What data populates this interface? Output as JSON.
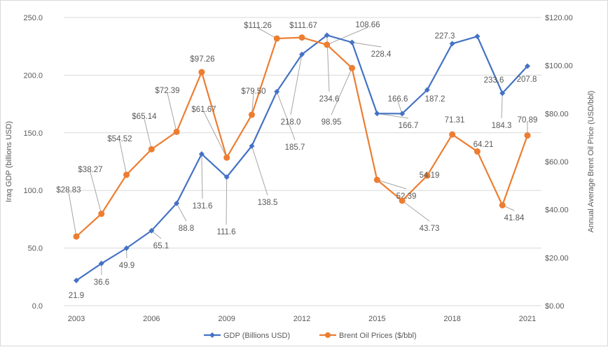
{
  "chart_data": {
    "type": "line",
    "x": [
      2003,
      2004,
      2005,
      2006,
      2007,
      2008,
      2009,
      2010,
      2011,
      2012,
      2013,
      2014,
      2015,
      2016,
      2017,
      2018,
      2019,
      2020,
      2021
    ],
    "x_ticks": [
      "2003",
      "2006",
      "2009",
      "2012",
      "2015",
      "2018",
      "2021"
    ],
    "ylabel": "Iraq GDP (billions USD)",
    "y2label": "Annual Average Brent Oil Price (USD/bbl)",
    "ylim": [
      0,
      250
    ],
    "y2lim": [
      0,
      120
    ],
    "y_ticks": [
      "0.0",
      "50.0",
      "100.0",
      "150.0",
      "200.0",
      "250.0"
    ],
    "y2_ticks": [
      "$0.00",
      "$20.00",
      "$40.00",
      "$60.00",
      "$80.00",
      "$100.00",
      "$120.00"
    ],
    "grid": true,
    "legend": "bottom",
    "series": [
      {
        "name": "GDP (Billions USD)",
        "axis": "left",
        "color": "#4472C4",
        "marker": "diamond",
        "values": [
          21.9,
          36.6,
          49.9,
          65.1,
          88.8,
          131.6,
          111.6,
          138.5,
          185.7,
          218.0,
          234.6,
          228.4,
          166.7,
          166.6,
          187.2,
          227.3,
          233.6,
          184.3,
          207.8
        ],
        "labels": [
          "21.9",
          "36.6",
          "49.9",
          "65.1",
          "88.8",
          "131.6",
          "111.6",
          "138.5",
          "185.7",
          "218.0",
          "234.6",
          "228.4",
          "166.7",
          "166.6",
          "187.2",
          "227.3",
          "233.6",
          "184.3",
          "207.8"
        ]
      },
      {
        "name": "Brent Oil Prices ($/bbl)",
        "axis": "right",
        "color": "#ED7D31",
        "marker": "circle",
        "values": [
          28.83,
          38.27,
          54.52,
          65.14,
          72.39,
          97.26,
          61.67,
          79.5,
          111.26,
          111.67,
          108.66,
          98.95,
          52.39,
          43.73,
          54.19,
          71.31,
          64.21,
          41.84,
          70.89
        ],
        "labels": [
          "$28.83",
          "$38.27",
          "$54.52",
          "$65.14",
          "$72.39",
          "$97.26",
          "$61.67",
          "$79.50",
          "$111.26",
          "$111.67",
          "108.66",
          "98.95",
          "52.39",
          "43.73",
          "54.19",
          "71.31",
          "64.21",
          "41.84",
          "70.89"
        ]
      }
    ]
  }
}
